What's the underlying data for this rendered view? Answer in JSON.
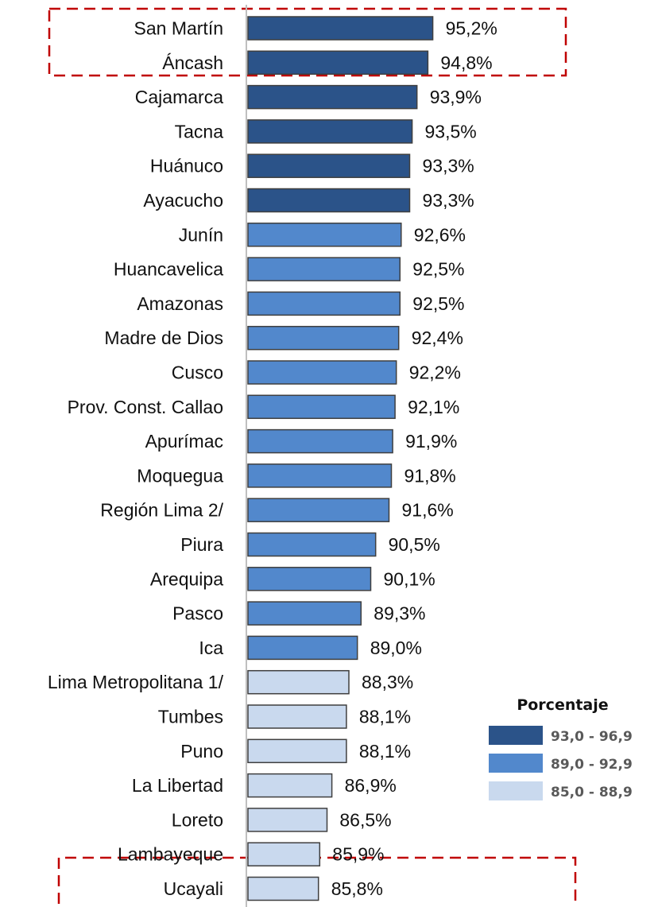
{
  "chart_data": {
    "type": "bar",
    "orientation": "horizontal",
    "categories": [
      "San Martín",
      "Áncash",
      "Cajamarca",
      "Tacna",
      "Huánuco",
      "Ayacucho",
      "Junín",
      "Huancavelica",
      "Amazonas",
      "Madre de Dios",
      "Cusco",
      "Prov. Const. Callao",
      "Apurímac",
      "Moquegua",
      "Región Lima  2/",
      "Piura",
      "Arequipa",
      "Pasco",
      "Ica",
      "Lima Metropolitana  1/",
      "Tumbes",
      "Puno",
      "La Libertad",
      "Loreto",
      "Lambayeque",
      "Ucayali"
    ],
    "values": [
      95.2,
      94.8,
      93.9,
      93.5,
      93.3,
      93.3,
      92.6,
      92.5,
      92.5,
      92.4,
      92.2,
      92.1,
      91.9,
      91.8,
      91.6,
      90.5,
      90.1,
      89.3,
      89.0,
      88.3,
      88.1,
      88.1,
      86.9,
      86.5,
      85.9,
      85.8
    ],
    "value_labels": [
      "95,2%",
      "94,8%",
      "93,9%",
      "93,5%",
      "93,3%",
      "93,3%",
      "92,6%",
      "92,5%",
      "92,5%",
      "92,4%",
      "92,2%",
      "92,1%",
      "91,9%",
      "91,8%",
      "91,6%",
      "90,5%",
      "90,1%",
      "89,3%",
      "89,0%",
      "88,3%",
      "88,1%",
      "88,1%",
      "86,9%",
      "86,5%",
      "85,9%",
      "85,8%"
    ],
    "xlim": [
      80,
      96.5
    ],
    "grid": false,
    "legend": {
      "title": "Porcentaje",
      "placement": "bottom-right",
      "entries": [
        {
          "label": "93,0 - 96,9",
          "color": "#2B5389"
        },
        {
          "label": "89,0 - 92,9",
          "color": "#5288CC"
        },
        {
          "label": "85,0 - 88,9",
          "color": "#C9D9EE"
        }
      ]
    },
    "bins": [
      {
        "min": 93.0,
        "color": "#2B5389"
      },
      {
        "min": 89.0,
        "color": "#5288CC"
      },
      {
        "min": 0,
        "color": "#C9D9EE"
      }
    ],
    "highlighted_groups": [
      [
        "San Martín",
        "Áncash"
      ],
      [
        "Lambayeque",
        "Ucayali"
      ]
    ],
    "highlight_color": "#C00000",
    "bar_border_color": "#3F3F3F",
    "axis_color": "#BFBFBF"
  }
}
